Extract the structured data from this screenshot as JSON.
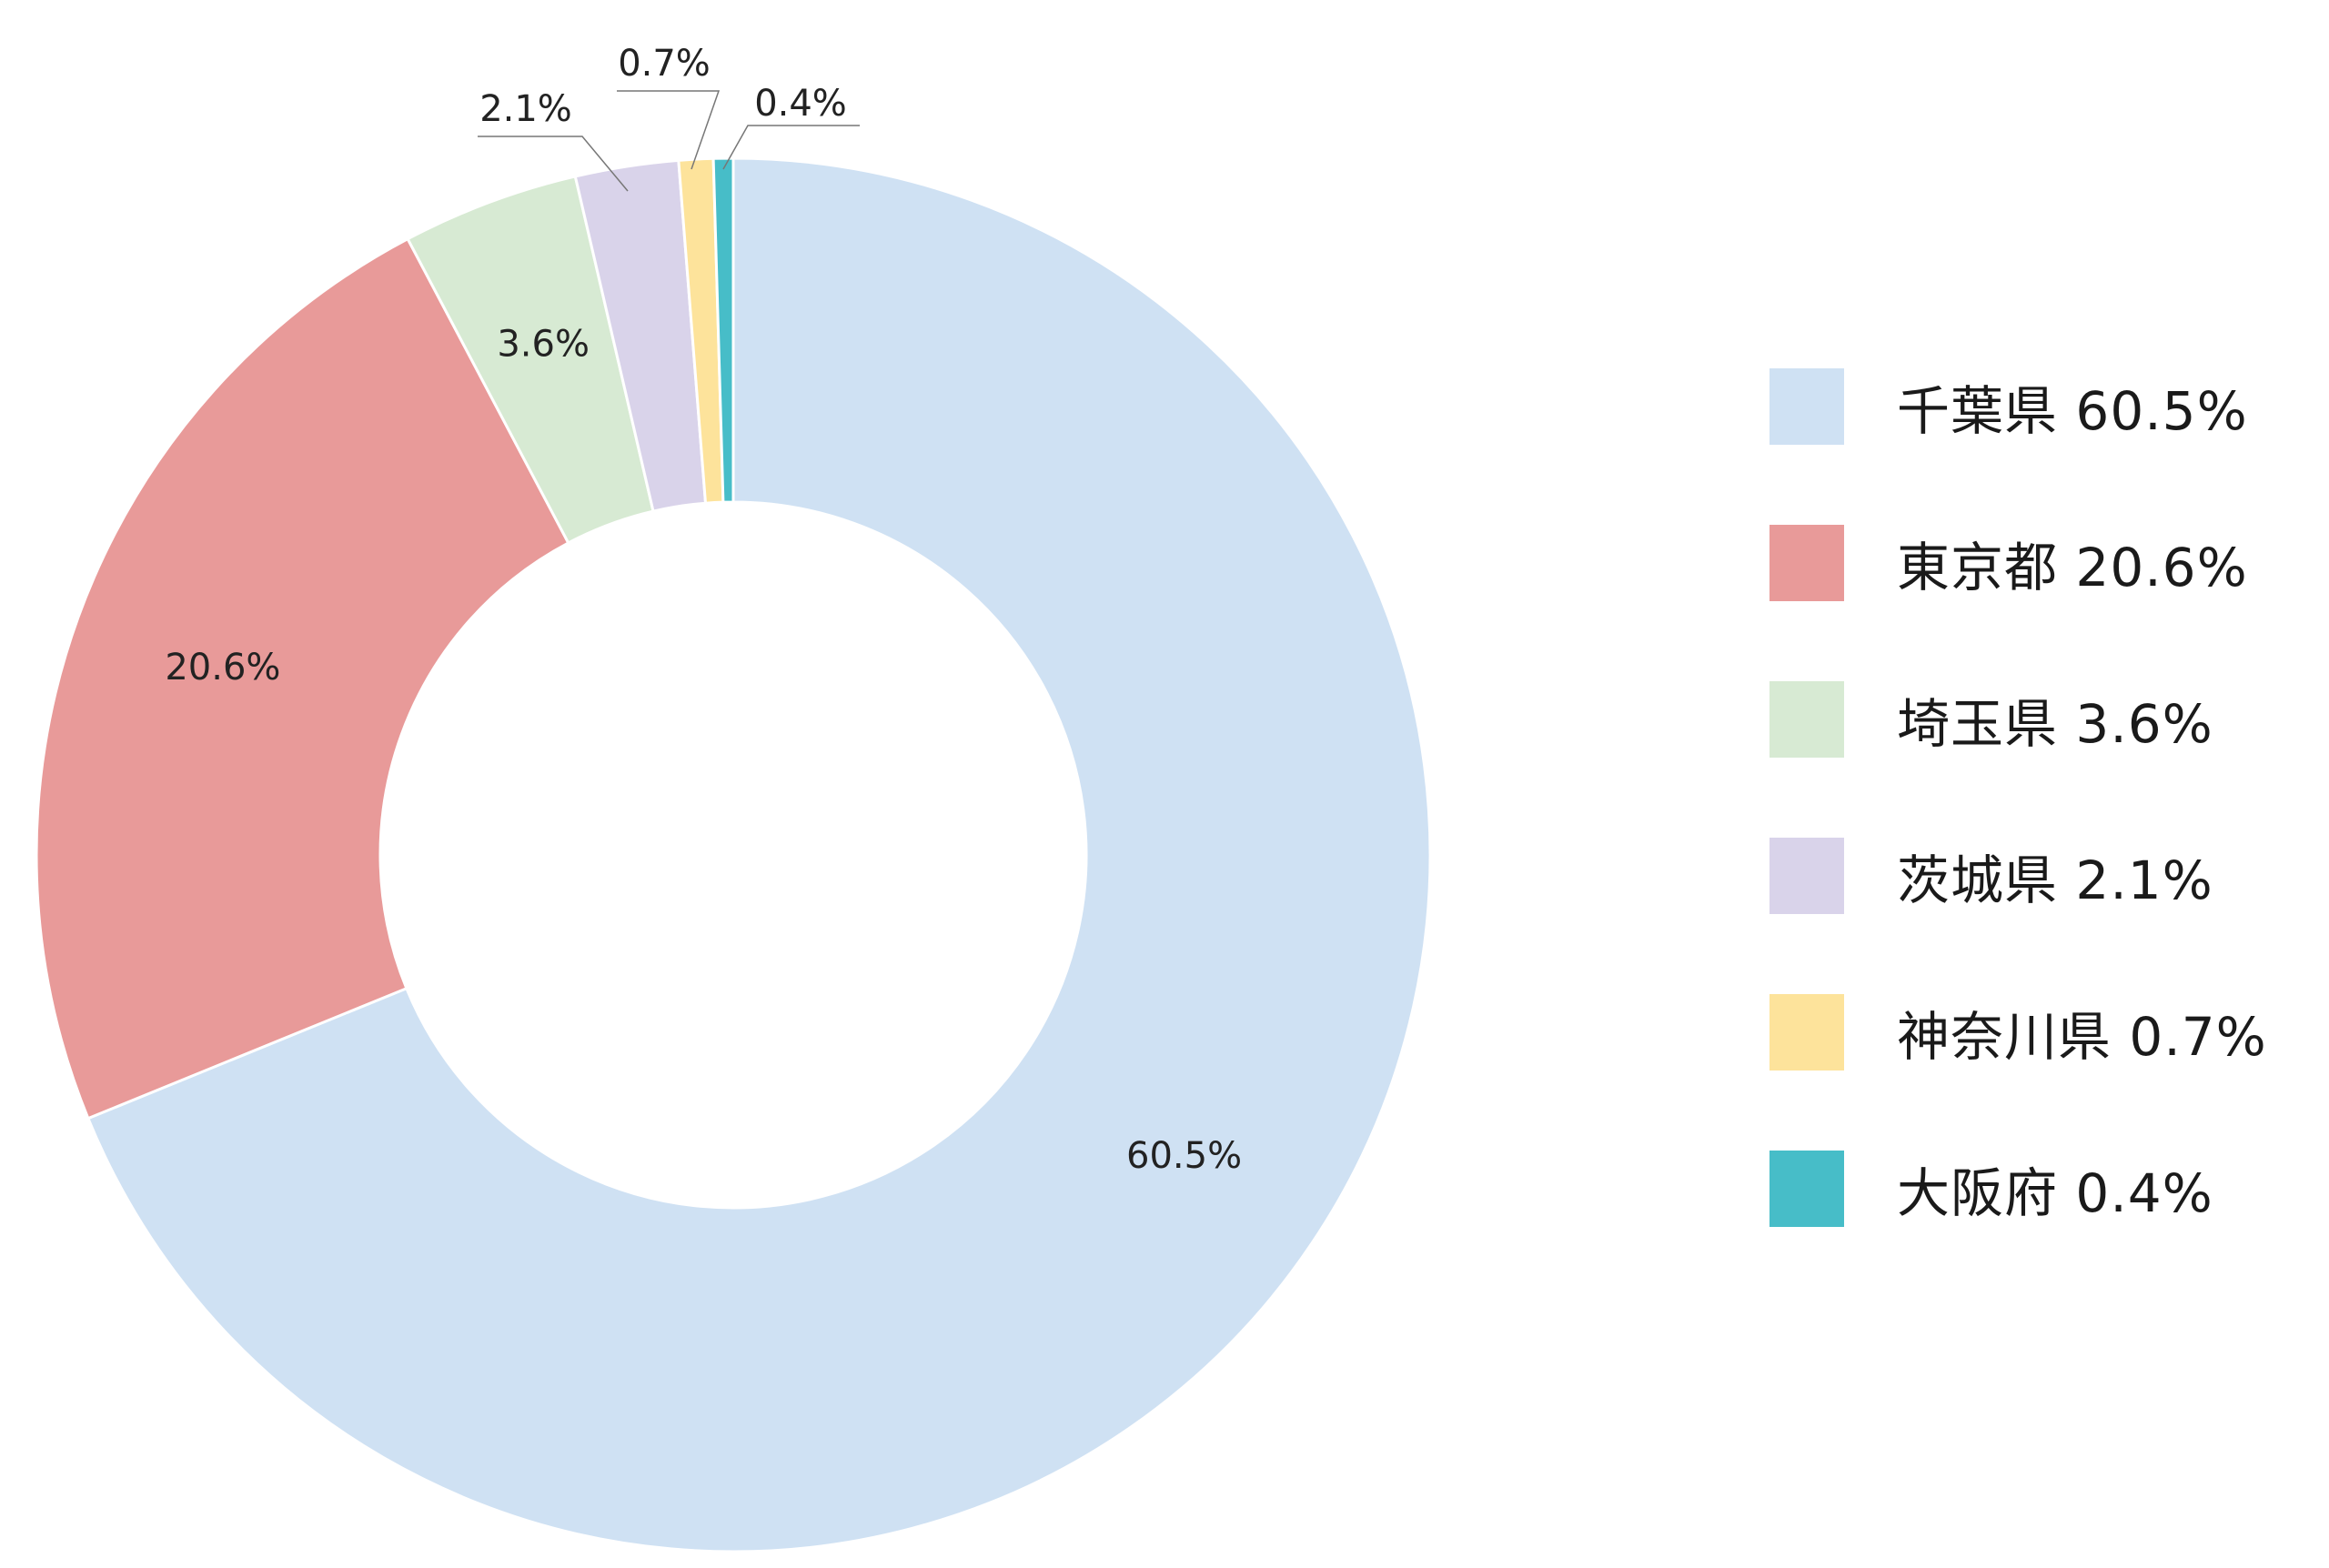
{
  "chart_data": {
    "type": "pie",
    "donut": true,
    "categories": [
      "千葉県",
      "東京都",
      "埼玉県",
      "茨城県",
      "神奈川県",
      "大阪府"
    ],
    "values": [
      60.5,
      20.6,
      3.6,
      2.1,
      0.7,
      0.4
    ],
    "data_labels": [
      "60.5%",
      "20.6%",
      "3.6%",
      "2.1%",
      "0.7%",
      "0.4%"
    ],
    "colors": [
      "#cfe1f3",
      "#e89a99",
      "#d7ead3",
      "#d9d3ea",
      "#fde39b",
      "#47bdc8"
    ],
    "legend": {
      "position": "right",
      "items": [
        {
          "label": "千葉県 60.5%",
          "color": "#cfe1f3"
        },
        {
          "label": "東京都 20.6%",
          "color": "#e89a99"
        },
        {
          "label": "埼玉県 3.6%",
          "color": "#d7ead3"
        },
        {
          "label": "茨城県 2.1%",
          "color": "#d9d3ea"
        },
        {
          "label": "神奈川県 0.7%",
          "color": "#fde39b"
        },
        {
          "label": "大阪府 0.4%",
          "color": "#47bdc8"
        }
      ]
    }
  }
}
